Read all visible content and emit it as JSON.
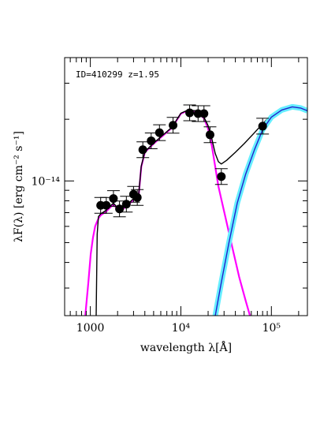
{
  "chart_data": {
    "type": "scatter",
    "title": "",
    "annotation": "ID=410299 z=1.95",
    "xlabel": "wavelength λ[Å]",
    "ylabel": "λF(λ) [erg cm⁻² s⁻¹]",
    "x_scale": "log",
    "y_scale": "log",
    "xlim": [
      520,
      250000
    ],
    "ylim": [
      2.2e-15,
      4e-14
    ],
    "x_ticks": [
      {
        "value": 1000,
        "label": "1000"
      },
      {
        "value": 10000,
        "label": "10⁴"
      },
      {
        "value": 100000,
        "label": "10⁵"
      }
    ],
    "y_ticks": [
      {
        "value": 1e-14,
        "label": "10⁻¹⁴"
      }
    ],
    "grid": false,
    "series": [
      {
        "kind": "points",
        "color": "#000000",
        "points": [
          {
            "x": 1300,
            "y": 7.6e-15,
            "yerr": 3e-16
          },
          {
            "x": 1500,
            "y": 7.6e-15,
            "yerr": 3e-16
          },
          {
            "x": 1800,
            "y": 8.2e-15,
            "yerr": 3e-16
          },
          {
            "x": 2100,
            "y": 7.3e-15,
            "yerr": 3e-16
          },
          {
            "x": 2500,
            "y": 7.7e-15,
            "yerr": 3e-16
          },
          {
            "x": 3000,
            "y": 8.6e-15,
            "yerr": 3e-16
          },
          {
            "x": 3300,
            "y": 8.3e-15,
            "yerr": 3e-16
          },
          {
            "x": 3800,
            "y": 1.42e-14,
            "yerr": 5e-16
          },
          {
            "x": 4700,
            "y": 1.57e-14,
            "yerr": 5e-16
          },
          {
            "x": 5800,
            "y": 1.72e-14,
            "yerr": 5e-16
          },
          {
            "x": 8200,
            "y": 1.87e-14,
            "yerr": 6e-16
          },
          {
            "x": 12500,
            "y": 2.15e-14,
            "yerr": 7e-16
          },
          {
            "x": 15500,
            "y": 2.13e-14,
            "yerr": 7e-16
          },
          {
            "x": 18000,
            "y": 2.13e-14,
            "yerr": 7e-16
          },
          {
            "x": 21000,
            "y": 1.68e-14,
            "yerr": 5e-16
          },
          {
            "x": 28000,
            "y": 1.05e-14,
            "yerr": 3e-16
          },
          {
            "x": 80000,
            "y": 1.85e-14,
            "yerr": 6e-16
          }
        ]
      },
      {
        "kind": "line",
        "color": "#ff00ff",
        "points": [
          [
            880,
            2.2e-15
          ],
          [
            950,
            3.2e-15
          ],
          [
            1010,
            4.4e-15
          ],
          [
            1070,
            5.3e-15
          ],
          [
            1130,
            6e-15
          ],
          [
            1180,
            6.3e-15
          ],
          [
            1240,
            6.6e-15
          ],
          [
            1300,
            6.8e-15
          ],
          [
            1500,
            7.1e-15
          ],
          [
            1800,
            7.7e-15
          ],
          [
            2100,
            7.1e-15
          ],
          [
            2500,
            7.5e-15
          ],
          [
            3000,
            8.1e-15
          ],
          [
            3400,
            8.3e-15
          ],
          [
            3650,
            1.17e-14
          ],
          [
            4000,
            1.38e-14
          ],
          [
            5000,
            1.52e-14
          ],
          [
            6000,
            1.63e-14
          ],
          [
            7000,
            1.73e-14
          ],
          [
            8000,
            1.82e-14
          ],
          [
            9000,
            1.98e-14
          ],
          [
            10000,
            2.13e-14
          ],
          [
            12000,
            2.21e-14
          ],
          [
            15000,
            2.18e-14
          ],
          [
            18000,
            2.02e-14
          ],
          [
            20000,
            1.8e-14
          ],
          [
            22000,
            1.48e-14
          ],
          [
            24000,
            1.17e-14
          ],
          [
            26000,
            9.4e-15
          ],
          [
            30000,
            7.1e-15
          ],
          [
            36000,
            5e-15
          ],
          [
            44000,
            3.4e-15
          ],
          [
            52000,
            2.6e-15
          ],
          [
            58000,
            2.2e-15
          ]
        ]
      },
      {
        "kind": "line",
        "color": "#000000",
        "points": [
          [
            1160,
            2.2e-15
          ],
          [
            1190,
            5.5e-15
          ],
          [
            1230,
            6.7e-15
          ],
          [
            1300,
            6.9e-15
          ],
          [
            1500,
            7.2e-15
          ],
          [
            1800,
            7.8e-15
          ],
          [
            2100,
            7.2e-15
          ],
          [
            2500,
            7.6e-15
          ],
          [
            3000,
            8.2e-15
          ],
          [
            3400,
            8.4e-15
          ],
          [
            3650,
            1.18e-14
          ],
          [
            4000,
            1.39e-14
          ],
          [
            5000,
            1.53e-14
          ],
          [
            6000,
            1.64e-14
          ],
          [
            7000,
            1.74e-14
          ],
          [
            8000,
            1.83e-14
          ],
          [
            9000,
            1.99e-14
          ],
          [
            10000,
            2.14e-14
          ],
          [
            12000,
            2.22e-14
          ],
          [
            15000,
            2.2e-14
          ],
          [
            18000,
            2.05e-14
          ],
          [
            20000,
            1.86e-14
          ],
          [
            22000,
            1.6e-14
          ],
          [
            24000,
            1.36e-14
          ],
          [
            26000,
            1.24e-14
          ],
          [
            28000,
            1.21e-14
          ],
          [
            32000,
            1.26e-14
          ],
          [
            40000,
            1.38e-14
          ],
          [
            50000,
            1.52e-14
          ],
          [
            65000,
            1.72e-14
          ],
          [
            80000,
            1.9e-14
          ],
          [
            100000,
            2.1e-14
          ],
          [
            130000,
            2.25e-14
          ],
          [
            170000,
            2.32e-14
          ],
          [
            210000,
            2.28e-14
          ],
          [
            250000,
            2.2e-14
          ]
        ]
      },
      {
        "kind": "line",
        "color": "#2222cc",
        "band_color": "#66eeff",
        "points": [
          [
            24000,
            2.2e-15
          ],
          [
            28000,
            3.2e-15
          ],
          [
            34000,
            5e-15
          ],
          [
            42000,
            7.8e-15
          ],
          [
            52000,
            1.08e-14
          ],
          [
            65000,
            1.42e-14
          ],
          [
            80000,
            1.78e-14
          ],
          [
            100000,
            2.05e-14
          ],
          [
            130000,
            2.22e-14
          ],
          [
            170000,
            2.3e-14
          ],
          [
            210000,
            2.27e-14
          ],
          [
            250000,
            2.2e-14
          ]
        ]
      }
    ]
  }
}
